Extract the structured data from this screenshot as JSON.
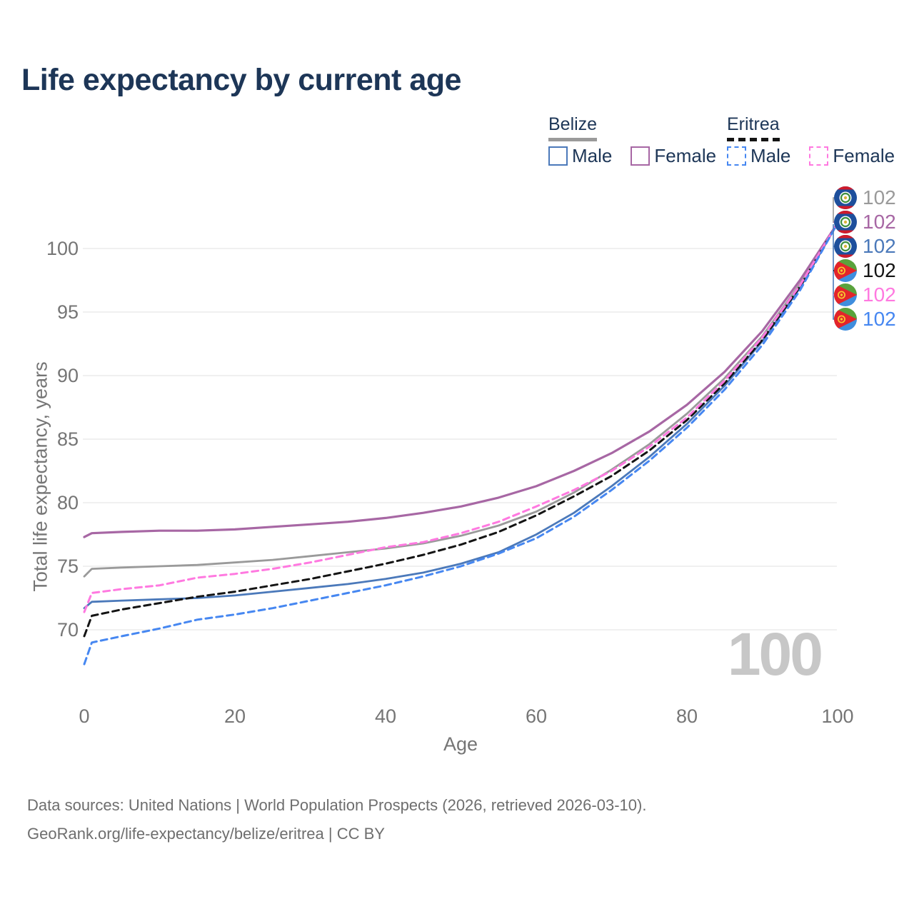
{
  "title": "Life expectancy by current age",
  "legend": {
    "groups": [
      {
        "name": "Belize",
        "line": {
          "style": "solid",
          "color": "#9a9a9a"
        },
        "items": [
          {
            "label": "Male",
            "color": "#4b79ba",
            "style": "solid"
          },
          {
            "label": "Female",
            "color": "#a767a4",
            "style": "solid"
          }
        ]
      },
      {
        "name": "Eritrea",
        "line": {
          "style": "dashed",
          "color": "#141414"
        },
        "items": [
          {
            "label": "Male",
            "color": "#4687f1",
            "style": "dashed"
          },
          {
            "label": "Female",
            "color": "#ff79e0",
            "style": "dashed"
          }
        ]
      }
    ]
  },
  "chart_data": {
    "type": "line",
    "title": "Life expectancy by current age",
    "xlabel": "Age",
    "ylabel": "Total life expectancy, years",
    "xticks": [
      0,
      20,
      40,
      60,
      80,
      100
    ],
    "yticks": [
      70,
      75,
      80,
      85,
      90,
      95,
      100
    ],
    "xlim": [
      0,
      100
    ],
    "ylim": [
      66.5,
      103
    ],
    "grid": "horizontal",
    "legend_position": "top-right",
    "watermark": "100",
    "x": [
      0,
      1,
      5,
      10,
      15,
      20,
      25,
      30,
      35,
      40,
      45,
      50,
      55,
      60,
      65,
      70,
      75,
      80,
      85,
      90,
      95,
      100
    ],
    "series": [
      {
        "name": "Belize Total",
        "country": "Belize",
        "color": "#9a9a9a",
        "dash": null,
        "width": 2.8,
        "values": [
          74.2,
          74.8,
          74.9,
          75.0,
          75.1,
          75.3,
          75.5,
          75.8,
          76.1,
          76.4,
          76.8,
          77.4,
          78.2,
          79.3,
          80.8,
          82.6,
          84.6,
          87.0,
          89.8,
          93.1,
          97.2,
          102
        ]
      },
      {
        "name": "Belize Female",
        "country": "Belize",
        "color": "#a767a4",
        "dash": null,
        "width": 3.2,
        "values": [
          77.3,
          77.6,
          77.7,
          77.8,
          77.8,
          77.9,
          78.1,
          78.3,
          78.5,
          78.8,
          79.2,
          79.7,
          80.4,
          81.3,
          82.5,
          83.9,
          85.6,
          87.7,
          90.3,
          93.5,
          97.5,
          102
        ]
      },
      {
        "name": "Belize Male",
        "country": "Belize",
        "color": "#4b79ba",
        "dash": null,
        "width": 2.8,
        "values": [
          71.7,
          72.2,
          72.3,
          72.4,
          72.5,
          72.7,
          73.0,
          73.3,
          73.6,
          74.0,
          74.5,
          75.2,
          76.1,
          77.5,
          79.2,
          81.3,
          83.6,
          86.2,
          89.2,
          92.7,
          96.9,
          102
        ]
      },
      {
        "name": "Eritrea Total",
        "country": "Eritrea",
        "color": "#141414",
        "dash": "9 6",
        "width": 3,
        "values": [
          69.5,
          71.1,
          71.6,
          72.1,
          72.6,
          73.0,
          73.5,
          74.0,
          74.6,
          75.2,
          75.9,
          76.7,
          77.7,
          79.0,
          80.5,
          82.1,
          84.1,
          86.5,
          89.4,
          92.8,
          97.0,
          102
        ]
      },
      {
        "name": "Eritrea Female",
        "country": "Eritrea",
        "color": "#ff79e0",
        "dash": "9 6",
        "width": 3,
        "values": [
          71.4,
          72.9,
          73.2,
          73.5,
          74.1,
          74.4,
          74.8,
          75.3,
          75.9,
          76.5,
          76.9,
          77.6,
          78.5,
          79.7,
          81.0,
          82.5,
          84.4,
          86.7,
          89.6,
          93.0,
          97.1,
          102
        ]
      },
      {
        "name": "Eritrea Male",
        "country": "Eritrea",
        "color": "#4687f1",
        "dash": "9 6",
        "width": 3,
        "values": [
          67.3,
          69.0,
          69.5,
          70.1,
          70.8,
          71.2,
          71.7,
          72.3,
          72.9,
          73.5,
          74.2,
          75.0,
          76.0,
          77.2,
          78.9,
          81.0,
          83.3,
          85.9,
          88.9,
          92.4,
          96.7,
          102
        ]
      }
    ],
    "end_labels": [
      {
        "value": "102",
        "color": "#9a9a9a",
        "flag": "belize",
        "series": "Belize Total"
      },
      {
        "value": "102",
        "color": "#a767a4",
        "flag": "belize",
        "series": "Belize Female"
      },
      {
        "value": "102",
        "color": "#4b79ba",
        "flag": "belize",
        "series": "Belize Male"
      },
      {
        "value": "102",
        "color": "#141414",
        "flag": "eritrea",
        "series": "Eritrea Total"
      },
      {
        "value": "102",
        "color": "#ff79e0",
        "flag": "eritrea",
        "series": "Eritrea Female"
      },
      {
        "value": "102",
        "color": "#4687f1",
        "flag": "eritrea",
        "series": "Eritrea Male"
      }
    ]
  },
  "footer": {
    "line1": "Data sources: United Nations | World Population Prospects (2026, retrieved 2026-03-10).",
    "line2": "GeoRank.org/life-expectancy/belize/eritrea | CC BY"
  },
  "colors": {
    "navy": "#1d3657",
    "axis": "#757575",
    "grid": "#ececec",
    "footer_text": "#6e6e6e",
    "watermark": "#c7c7c7"
  }
}
